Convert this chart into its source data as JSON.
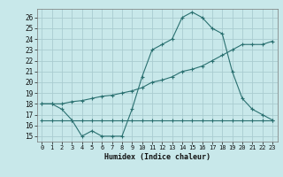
{
  "xlabel": "Humidex (Indice chaleur)",
  "xlim": [
    -0.5,
    23.5
  ],
  "ylim": [
    14.5,
    26.8
  ],
  "yticks": [
    15,
    16,
    17,
    18,
    19,
    20,
    21,
    22,
    23,
    24,
    25,
    26
  ],
  "xticks": [
    0,
    1,
    2,
    3,
    4,
    5,
    6,
    7,
    8,
    9,
    10,
    11,
    12,
    13,
    14,
    15,
    16,
    17,
    18,
    19,
    20,
    21,
    22,
    23
  ],
  "bg_color": "#c8e8ea",
  "grid_color": "#aaccd0",
  "line_color": "#2a7070",
  "line1_x": [
    0,
    1,
    2,
    3,
    4,
    5,
    6,
    7,
    8,
    9,
    10,
    11,
    12,
    13,
    14,
    15,
    16,
    17,
    18,
    19,
    20,
    21,
    22,
    23
  ],
  "line1_y": [
    18,
    18,
    17.5,
    16.5,
    15,
    15.5,
    15,
    15,
    15,
    17.5,
    20.5,
    23,
    23.5,
    24,
    26,
    26.5,
    26,
    25,
    24.5,
    21,
    18.5,
    17.5,
    17,
    16.5
  ],
  "line2_x": [
    0,
    1,
    2,
    3,
    4,
    5,
    6,
    7,
    8,
    9,
    10,
    11,
    12,
    13,
    14,
    15,
    16,
    17,
    18,
    19,
    20,
    21,
    22,
    23
  ],
  "line2_y": [
    18,
    18,
    18,
    18.2,
    18.3,
    18.5,
    18.7,
    18.8,
    19,
    19.2,
    19.5,
    20,
    20.2,
    20.5,
    21,
    21.2,
    21.5,
    22,
    22.5,
    23,
    23.5,
    23.5,
    23.5,
    23.8
  ],
  "line3_x": [
    0,
    1,
    2,
    3,
    4,
    5,
    6,
    7,
    8,
    9,
    10,
    11,
    12,
    13,
    14,
    15,
    16,
    17,
    18,
    19,
    20,
    21,
    22,
    23
  ],
  "line3_y": [
    16.5,
    16.5,
    16.5,
    16.5,
    16.5,
    16.5,
    16.5,
    16.5,
    16.5,
    16.5,
    16.5,
    16.5,
    16.5,
    16.5,
    16.5,
    16.5,
    16.5,
    16.5,
    16.5,
    16.5,
    16.5,
    16.5,
    16.5,
    16.5
  ]
}
